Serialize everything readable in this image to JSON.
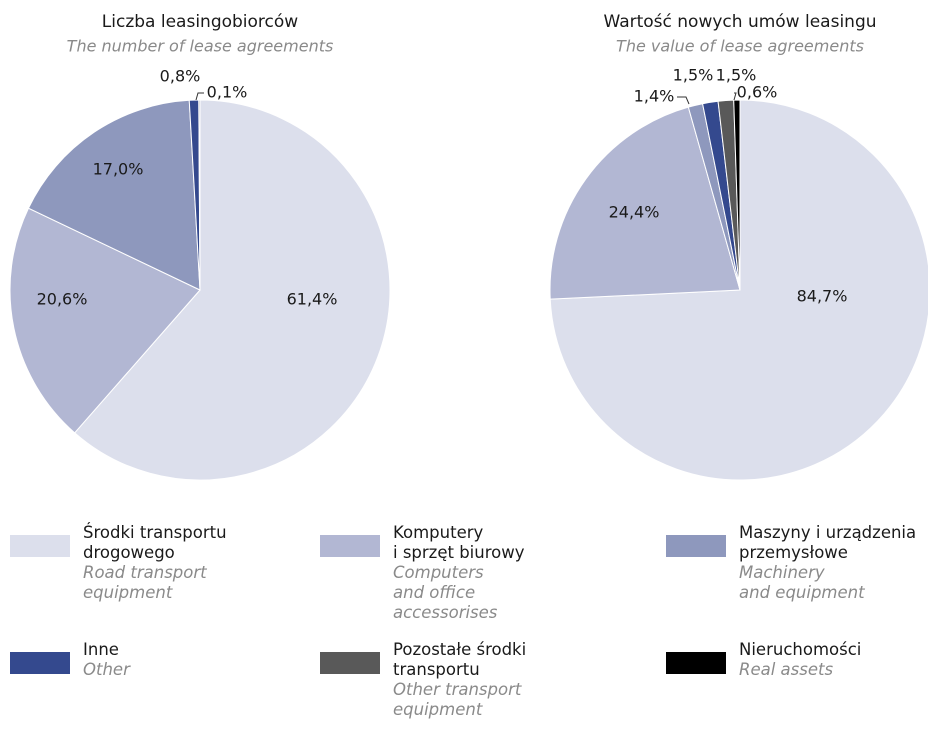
{
  "chart_data": [
    {
      "type": "pie",
      "title": "Liczba leasingobiorców",
      "subtitle": "The number of lease agreements",
      "values": [
        61.4,
        20.6,
        17.0,
        0.8,
        0.1
      ],
      "value_labels": [
        "61,4%",
        "20,6%",
        "17,0%",
        "0,8%",
        "0,1%"
      ],
      "colors": [
        "#dcdfec",
        "#b2b7d3",
        "#8e98bd",
        "#34498e",
        "#595959"
      ]
    },
    {
      "type": "pie",
      "title": "Wartość nowych umów leasingu",
      "subtitle": "The value of lease agreements",
      "values": [
        84.7,
        24.4,
        1.4,
        1.5,
        1.5,
        0.6
      ],
      "value_labels": [
        "84,7%",
        "24,4%",
        "1,4%",
        "1,5%",
        "1,5%",
        "0,6%"
      ],
      "colors": [
        "#dcdfec",
        "#b2b7d3",
        "#8e98bd",
        "#34498e",
        "#595959",
        "#000000"
      ]
    }
  ],
  "legend": [
    {
      "label": [
        "Środki transportu",
        "drogowego"
      ],
      "label_en": [
        "Road transport",
        "equipment"
      ],
      "color": "#dcdfec"
    },
    {
      "label": [
        "Komputery",
        "i sprzęt biurowy"
      ],
      "label_en": [
        "Computers",
        "and office accessorises"
      ],
      "color": "#b2b7d3"
    },
    {
      "label": [
        "Maszyny i urządzenia",
        "przemysłowe"
      ],
      "label_en": [
        "Machinery",
        "and equipment"
      ],
      "color": "#8e98bd"
    },
    {
      "label": [
        "Inne"
      ],
      "label_en": [
        "Other"
      ],
      "color": "#34498e"
    },
    {
      "label": [
        "Pozostałe środki",
        "transportu"
      ],
      "label_en": [
        "Other transport",
        "equipment"
      ],
      "color": "#595959"
    },
    {
      "label": [
        "Nieruchomości"
      ],
      "label_en": [
        "Real assets"
      ],
      "color": "#000000"
    }
  ]
}
